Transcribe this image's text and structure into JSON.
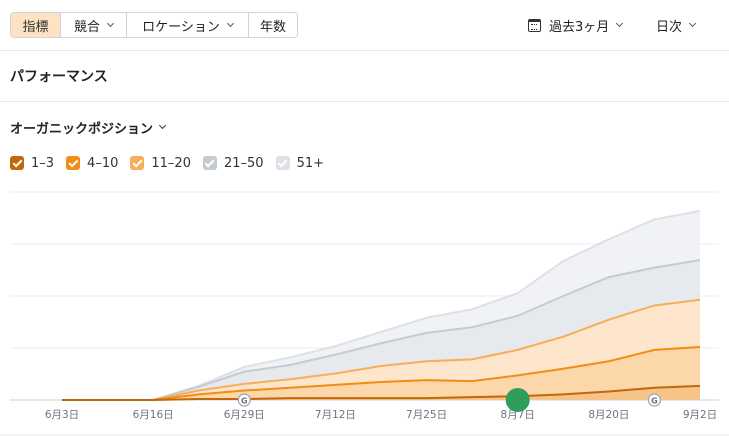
{
  "toolbar": {
    "tabs": [
      {
        "label": "指標",
        "active": true
      },
      {
        "label": "競合",
        "dropdown": true
      },
      {
        "label": "ロケーション",
        "dropdown": true
      },
      {
        "label": "年数"
      }
    ],
    "date_range": "過去3ヶ月",
    "granularity": "日次"
  },
  "section_title": "パフォーマンス",
  "chart_title": "オーガニックポジション",
  "legend": [
    {
      "label": "1–3",
      "color": "#c2680c"
    },
    {
      "label": "4–10",
      "color": "#f28c14"
    },
    {
      "label": "11–20",
      "color": "#f7ad5a"
    },
    {
      "label": "21–50",
      "color": "#c5cbd3"
    },
    {
      "label": "51+",
      "color": "#dde1e6"
    }
  ],
  "chart_data": {
    "type": "area",
    "stacked": true,
    "x": [
      "6月3日",
      "6月10日",
      "6月16日",
      "6月23日",
      "6月29日",
      "7月5日",
      "7月12日",
      "7月18日",
      "7月25日",
      "8月1日",
      "8月7日",
      "8月14日",
      "8月20日",
      "8月26日",
      "9月2日"
    ],
    "x_tick_labels": [
      "6月3日",
      "6月16日",
      "6月29日",
      "7月12日",
      "7月25日",
      "8月7日",
      "8月20日",
      "9月2日"
    ],
    "series": [
      {
        "name": "1–3",
        "values": [
          0,
          0,
          0,
          1,
          1,
          2,
          2,
          2,
          2,
          3,
          4,
          6,
          9,
          13,
          15
        ]
      },
      {
        "name": "4–10",
        "values": [
          0,
          0,
          0,
          5,
          9,
          11,
          14,
          17,
          19,
          17,
          22,
          27,
          32,
          40,
          41
        ]
      },
      {
        "name": "11–20",
        "values": [
          0,
          0,
          0,
          4,
          7,
          9,
          12,
          17,
          20,
          23,
          27,
          34,
          44,
          47,
          50
        ]
      },
      {
        "name": "21–50",
        "values": [
          0,
          0,
          0,
          4,
          13,
          15,
          20,
          24,
          30,
          34,
          36,
          43,
          45,
          40,
          42
        ]
      },
      {
        "name": "51+",
        "values": [
          0,
          0,
          0,
          1,
          5,
          8,
          9,
          12,
          16,
          19,
          24,
          37,
          40,
          51,
          52
        ]
      }
    ],
    "ylim": [
      0,
      220
    ],
    "grid": true,
    "annotations": [
      {
        "type": "google-update",
        "x": "6月29日",
        "label": "G"
      },
      {
        "type": "google-update",
        "x": "8月26日",
        "label": "G"
      },
      {
        "type": "highlight-dot",
        "x": "8月7日",
        "color": "#2f9e5b"
      }
    ]
  }
}
